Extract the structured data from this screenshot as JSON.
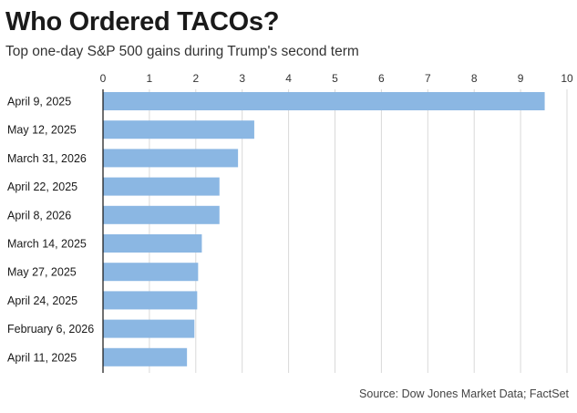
{
  "chart_data": {
    "type": "bar",
    "orientation": "horizontal",
    "title": "Who Ordered TACOs?",
    "subtitle": "Top one-day S&P 500 gains during Trump's second term",
    "source": "Source: Dow Jones Market Data; FactSet",
    "categories": [
      "April 9, 2025",
      "May 12, 2025",
      "March 31, 2026",
      "April 22, 2025",
      "April 8, 2026",
      "March 14, 2025",
      "May 27, 2025",
      "April 24, 2025",
      "February 6, 2026",
      "April 11, 2025"
    ],
    "values": [
      9.52,
      3.26,
      2.91,
      2.51,
      2.51,
      2.13,
      2.05,
      2.03,
      1.97,
      1.81
    ],
    "xticks": [
      "0",
      "1",
      "2",
      "3",
      "4",
      "5",
      "6",
      "7",
      "8",
      "9",
      "10"
    ],
    "xlim": [
      0,
      10
    ],
    "grid": true,
    "bar_color": "#8bb7e3"
  }
}
